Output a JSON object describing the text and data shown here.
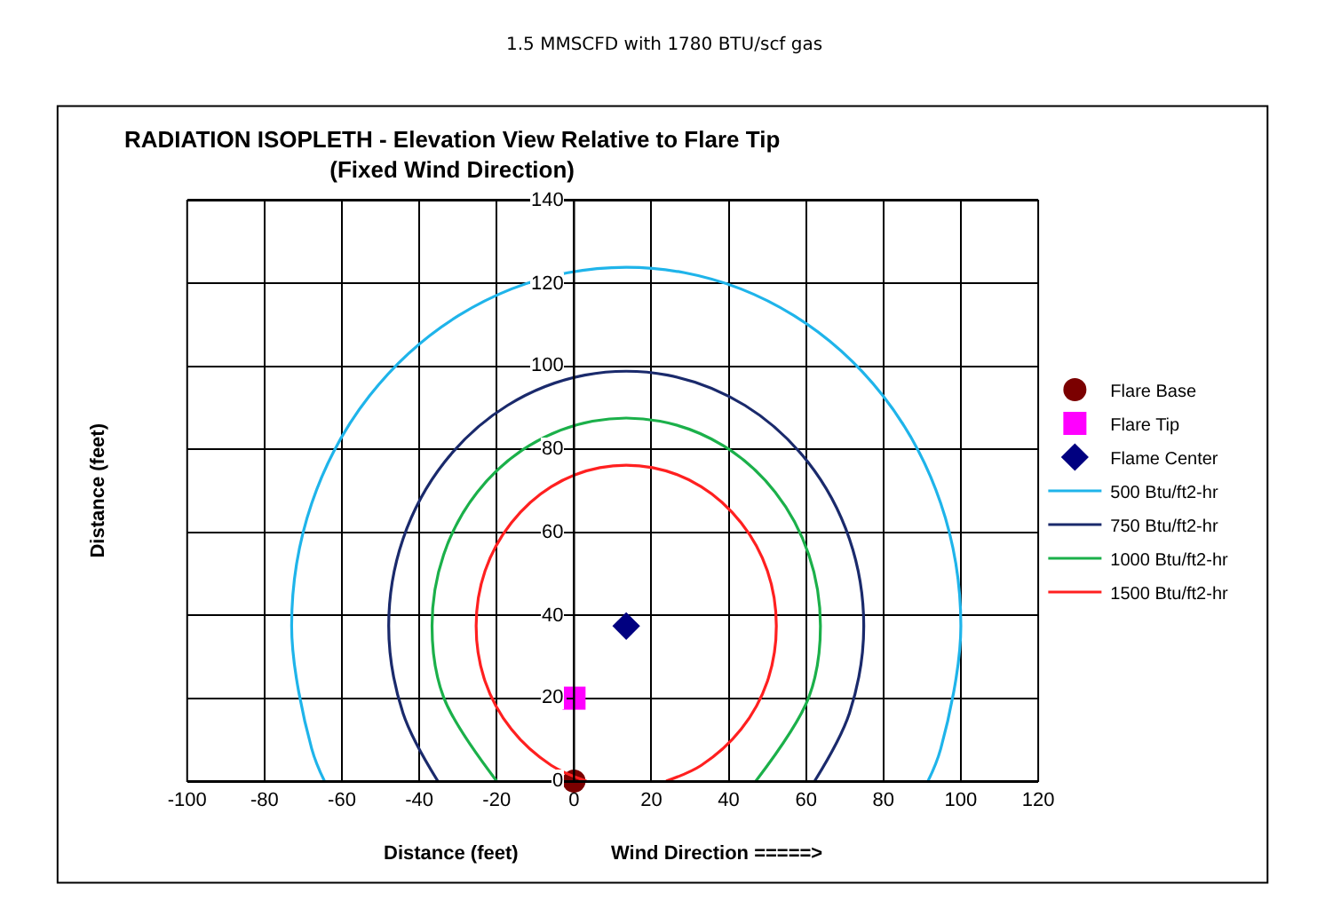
{
  "chart_data": {
    "type": "line",
    "title": "RADIATION ISOPLETH - Elevation View Relative to Flare Tip\n(Fixed Wind Direction)",
    "xlabel": "Distance (feet)",
    "ylabel": "Distance (feet)",
    "annotations": [
      "1.5 MMSCFD with 1780 BTU/scf gas",
      "Wind Direction =====>"
    ],
    "xlim": [
      -100,
      120
    ],
    "xticks": [
      -100,
      -80,
      -60,
      -40,
      -20,
      0,
      20,
      40,
      60,
      80,
      100,
      120
    ],
    "ylim": [
      0,
      140
    ],
    "yticks": [
      0,
      20,
      40,
      60,
      80,
      100,
      120,
      140
    ],
    "grid": true,
    "legend": "right",
    "series": [
      {
        "name": "Flare Base",
        "type": "scatter",
        "marker": "circle",
        "color": "#7b0000",
        "x": [
          0
        ],
        "values": [
          0
        ]
      },
      {
        "name": "Flare Tip",
        "type": "scatter",
        "marker": "square",
        "color": "#ff00ff",
        "x": [
          0
        ],
        "values": [
          20
        ]
      },
      {
        "name": "Flame Center",
        "type": "scatter",
        "marker": "diamond",
        "color": "#000080",
        "x": [
          13.5
        ],
        "values": [
          37.4
        ]
      },
      {
        "name": "500 Btu/ft2-hr",
        "marker": "none",
        "color": "#1fb4ea",
        "x": [
          91.5,
          94.8,
          100,
          94.8,
          79.8,
          56.8,
          28.6,
          -1.6,
          -29.8,
          -52.8,
          -67.8,
          -73,
          -67.8,
          -64.5
        ],
        "values": [
          0,
          7.8,
          37.4,
          67.0,
          93.0,
          112.3,
          122.6,
          122.6,
          112.3,
          93.0,
          67.0,
          37.4,
          7.8,
          0
        ]
      },
      {
        "name": "750 Btu/ft2-hr",
        "marker": "none",
        "color": "#1a2a6c",
        "x": [
          62.2,
          71.2,
          74.9,
          71.2,
          60.5,
          44.2,
          24.2,
          2.8,
          -17.2,
          -33.5,
          -44.2,
          -47.9,
          -44.2,
          -35.2
        ],
        "values": [
          0,
          16.4,
          37.4,
          58.4,
          76.9,
          90.6,
          97.9,
          97.9,
          90.6,
          76.9,
          58.4,
          37.4,
          16.4,
          0
        ]
      },
      {
        "name": "1000 Btu/ft2-hr",
        "marker": "none",
        "color": "#1bb04a",
        "x": [
          47,
          60.7,
          63.7,
          60.7,
          52.0,
          38.6,
          22.2,
          4.8,
          -11.6,
          -25.0,
          -33.7,
          -36.7,
          -33.7,
          -20
        ],
        "values": [
          0,
          20.2,
          37.4,
          54.6,
          69.7,
          80.9,
          86.8,
          86.8,
          80.9,
          69.7,
          54.6,
          37.4,
          20.2,
          0
        ]
      },
      {
        "name": "1500 Btu/ft2-hr",
        "marker": "none",
        "color": "#ff2020",
        "x": [
          23.8,
          32.9,
          43.2,
          50.0,
          52.3,
          50.0,
          43.2,
          32.9,
          20.3,
          6.7,
          -5.9,
          -16.2,
          -23.0,
          -25.3,
          -23.0,
          -16.2,
          -5.9,
          3.2
        ],
        "values": [
          0,
          3.8,
          12.5,
          24.1,
          37.4,
          50.7,
          62.3,
          71.0,
          75.6,
          75.6,
          71.0,
          62.3,
          50.7,
          37.4,
          24.1,
          12.5,
          3.8,
          0
        ]
      }
    ]
  }
}
